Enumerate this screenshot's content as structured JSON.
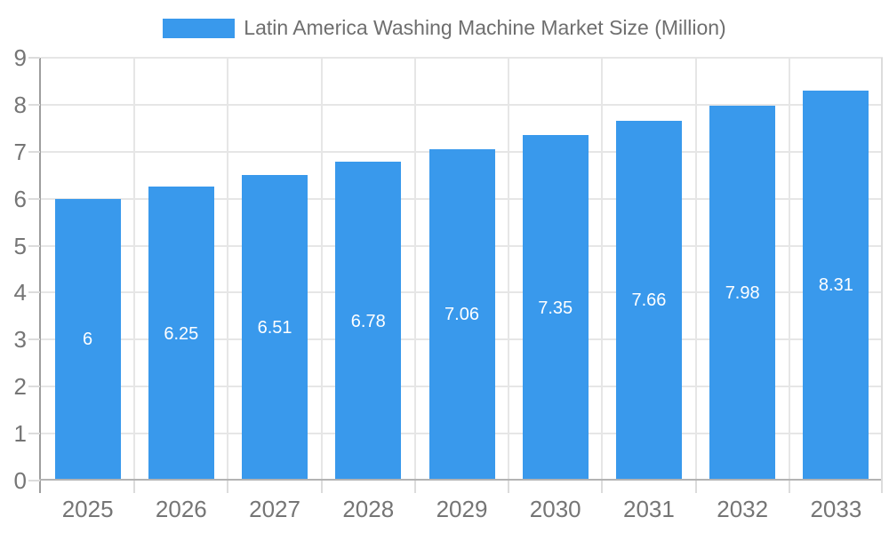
{
  "legend": {
    "label": "Latin America Washing Machine Market Size (Million)"
  },
  "chart_data": {
    "type": "bar",
    "title": "Latin America Washing Machine Market Size (Million)",
    "categories": [
      "2025",
      "2026",
      "2027",
      "2028",
      "2029",
      "2030",
      "2031",
      "2032",
      "2033"
    ],
    "values": [
      6,
      6.25,
      6.51,
      6.78,
      7.06,
      7.35,
      7.66,
      7.98,
      8.31
    ],
    "value_labels": [
      "6",
      "6.25",
      "6.51",
      "6.78",
      "7.06",
      "7.35",
      "7.66",
      "7.98",
      "8.31"
    ],
    "xlabel": "",
    "ylabel": "",
    "ylim": [
      0,
      9
    ],
    "y_ticks": [
      0,
      1,
      2,
      3,
      4,
      5,
      6,
      7,
      8,
      9
    ],
    "grid": true,
    "legend_position": "top",
    "value_label_position": "inside-center",
    "colors": {
      "bar": "#3999EC",
      "grid": "#E6E6E6",
      "tick": "#DCDCDC",
      "axis_line": "#9E9E9E",
      "baseline": "#B3B3B3",
      "axis_text": "#757575",
      "legend_text": "#6E6E6E",
      "value_text": "#FFFFFF",
      "background": "#FFFFFF"
    }
  }
}
